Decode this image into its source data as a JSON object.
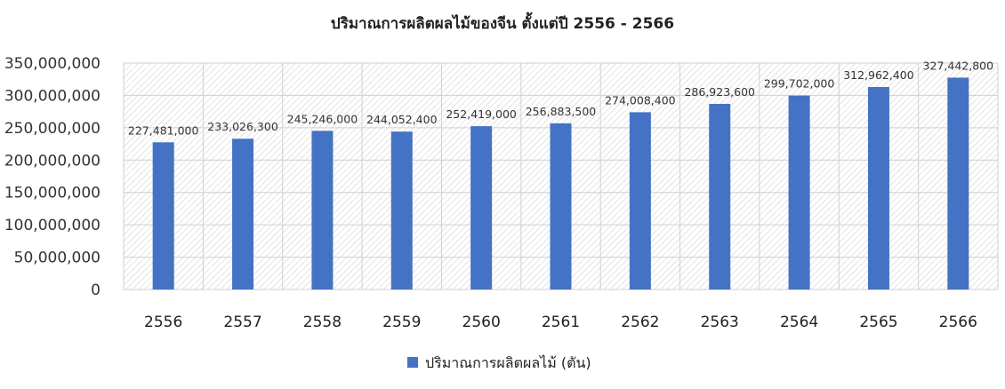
{
  "chart_data": {
    "type": "bar",
    "title": "ปริมาณการผลิตผลไม้ของจีน ตั้งแต่ปี 2556 - 2566",
    "categories": [
      "2556",
      "2557",
      "2558",
      "2559",
      "2560",
      "2561",
      "2562",
      "2563",
      "2564",
      "2565",
      "2566"
    ],
    "series": [
      {
        "name": "ปริมาณการผลิตผลไม้ (ตัน)",
        "color": "#4472C4",
        "values": [
          227481000,
          233026300,
          245246000,
          244052400,
          252419000,
          256883500,
          274008400,
          286923600,
          299702000,
          312962400,
          327442800
        ]
      }
    ],
    "data_labels": [
      "227,481,000",
      "233,026,300",
      "245,246,000",
      "244,052,400",
      "252,419,000",
      "256,883,500",
      "274,008,400",
      "286,923,600",
      "299,702,000",
      "312,962,400",
      "327,442,800"
    ],
    "ylim": [
      0,
      350000000
    ],
    "yticks": [
      "0",
      "50,000,000",
      "100,000,000",
      "150,000,000",
      "200,000,000",
      "250,000,000",
      "300,000,000",
      "350,000,000"
    ],
    "grid": true,
    "legend_position": "bottom"
  }
}
